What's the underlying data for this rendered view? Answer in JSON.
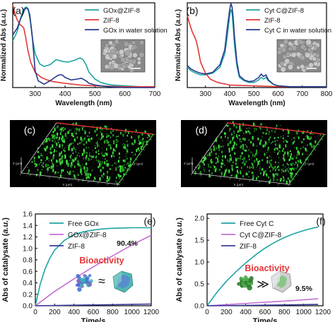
{
  "figure": {
    "background": "#ffffff"
  },
  "chart_data": [
    {
      "panel": "a",
      "type": "line",
      "xlabel": "Wavelength (nm)",
      "ylabel": "Normalized Abs (a.u.)",
      "xlim": [
        225,
        700
      ],
      "ylim": [
        0,
        1.0
      ],
      "xticks": [
        300,
        400,
        500,
        600,
        700
      ],
      "yticks": [],
      "legend": "top-right",
      "inset": "sem-image",
      "series": [
        {
          "name": "GOx@ZIF-8",
          "color": "#1fa3a3",
          "x": [
            225,
            240,
            250,
            258,
            265,
            272,
            278,
            284,
            290,
            300,
            315,
            330,
            350,
            370,
            390,
            410,
            430,
            450,
            460,
            470,
            480,
            500,
            520,
            540,
            560,
            600,
            650,
            700
          ],
          "y": [
            0.55,
            0.66,
            0.8,
            0.9,
            0.94,
            0.95,
            0.9,
            0.78,
            0.6,
            0.4,
            0.28,
            0.25,
            0.27,
            0.33,
            0.31,
            0.3,
            0.32,
            0.35,
            0.33,
            0.27,
            0.18,
            0.1,
            0.06,
            0.04,
            0.03,
            0.02,
            0.01,
            0.01
          ]
        },
        {
          "name": "ZIF-8",
          "color": "#e23636",
          "x": [
            225,
            232,
            240,
            250,
            258,
            262,
            268,
            275,
            285,
            300,
            320,
            340,
            360,
            380,
            400,
            450,
            500,
            600,
            700
          ],
          "y": [
            0.98,
            0.88,
            0.8,
            0.74,
            0.72,
            0.7,
            0.6,
            0.45,
            0.3,
            0.18,
            0.12,
            0.09,
            0.07,
            0.06,
            0.05,
            0.03,
            0.02,
            0.01,
            0.01
          ]
        },
        {
          "name": "GOx in water solution",
          "color": "#253a8c",
          "x": [
            225,
            240,
            250,
            260,
            265,
            270,
            276,
            282,
            290,
            300,
            310,
            330,
            350,
            370,
            380,
            390,
            400,
            420,
            440,
            455,
            470,
            480,
            500,
            520,
            550,
            600,
            700
          ],
          "y": [
            0.62,
            0.7,
            0.8,
            0.88,
            0.92,
            0.94,
            0.93,
            0.86,
            0.62,
            0.2,
            0.08,
            0.04,
            0.08,
            0.13,
            0.15,
            0.15,
            0.12,
            0.09,
            0.1,
            0.11,
            0.08,
            0.05,
            0.03,
            0.02,
            0.01,
            0.0,
            0.0
          ]
        }
      ]
    },
    {
      "panel": "b",
      "type": "line",
      "xlabel": "Wavelength (nm)",
      "ylabel": "Normalized Abs (a.u.)",
      "xlim": [
        225,
        800
      ],
      "ylim": [
        0,
        1.0
      ],
      "xticks": [
        300,
        400,
        500,
        600,
        700,
        800
      ],
      "yticks": [],
      "legend": "top-right",
      "inset": "sem-image",
      "series": [
        {
          "name": "Cyt C@ZIF-8",
          "color": "#1fa3a3",
          "x": [
            225,
            240,
            260,
            280,
            300,
            330,
            360,
            380,
            390,
            400,
            405,
            410,
            415,
            420,
            430,
            440,
            460,
            480,
            500,
            520,
            530,
            540,
            550,
            560,
            580,
            600,
            650,
            700,
            800
          ],
          "y": [
            0.24,
            0.2,
            0.17,
            0.15,
            0.15,
            0.17,
            0.24,
            0.4,
            0.6,
            0.85,
            0.92,
            0.88,
            0.7,
            0.5,
            0.25,
            0.12,
            0.08,
            0.06,
            0.06,
            0.09,
            0.12,
            0.1,
            0.12,
            0.08,
            0.04,
            0.02,
            0.01,
            0.01,
            0.01
          ]
        },
        {
          "name": "ZIF-8",
          "color": "#e23636",
          "x": [
            225,
            235,
            245,
            255,
            262,
            270,
            280,
            300,
            320,
            350,
            400,
            500,
            600,
            800
          ],
          "y": [
            0.85,
            0.75,
            0.66,
            0.6,
            0.55,
            0.45,
            0.3,
            0.17,
            0.1,
            0.06,
            0.03,
            0.02,
            0.01,
            0.01
          ]
        },
        {
          "name": "Cyt C in water solution",
          "color": "#253a8c",
          "x": [
            225,
            240,
            260,
            280,
            300,
            330,
            360,
            380,
            390,
            400,
            405,
            410,
            415,
            420,
            430,
            440,
            460,
            480,
            500,
            520,
            530,
            540,
            550,
            560,
            580,
            600,
            650,
            700,
            800
          ],
          "y": [
            0.26,
            0.22,
            0.19,
            0.17,
            0.16,
            0.18,
            0.27,
            0.45,
            0.7,
            0.92,
            0.99,
            0.95,
            0.8,
            0.6,
            0.3,
            0.14,
            0.09,
            0.07,
            0.08,
            0.12,
            0.16,
            0.13,
            0.15,
            0.09,
            0.04,
            0.02,
            0.01,
            0.01,
            0.01
          ]
        }
      ]
    },
    {
      "panel": "c",
      "type": "scatter",
      "xlabel": "X (µm)",
      "ylabel": "Y (µm)",
      "zlabel": "Z (µm)",
      "view": "3d-confocal"
    },
    {
      "panel": "d",
      "type": "scatter",
      "xlabel": "X (µm)",
      "ylabel": "Y (µm)",
      "zlabel": "Z (µm)",
      "view": "3d-confocal"
    },
    {
      "panel": "e",
      "type": "line",
      "xlabel": "Time/s",
      "ylabel": "Abs of catalysate (a.u.)",
      "xlim": [
        0,
        1200
      ],
      "ylim": [
        0,
        1.6
      ],
      "xticks": [
        0,
        200,
        400,
        600,
        800,
        1000,
        1200
      ],
      "yticks": [
        0.0,
        0.2,
        0.4,
        0.6,
        0.8,
        1.0,
        1.2,
        1.4,
        1.6
      ],
      "legend": "top-left",
      "annotations": [
        "90.4%",
        "Bioactivity",
        "≈"
      ],
      "series": [
        {
          "name": "Free GOx",
          "color": "#1fa3a3",
          "x": [
            0,
            50,
            100,
            150,
            200,
            300,
            400,
            500,
            600,
            700,
            800,
            900,
            1000,
            1100,
            1200
          ],
          "y": [
            0.0,
            0.37,
            0.64,
            0.83,
            0.97,
            1.14,
            1.24,
            1.29,
            1.32,
            1.34,
            1.35,
            1.355,
            1.36,
            1.36,
            1.36
          ]
        },
        {
          "name": "GOx@ZIF-8",
          "color": "#c46fd6",
          "x": [
            0,
            200,
            400,
            600,
            800,
            1000,
            1200
          ],
          "y": [
            0.0,
            0.25,
            0.47,
            0.68,
            0.87,
            1.06,
            1.23
          ]
        },
        {
          "name": "ZIF-8",
          "color": "#3d3d9c",
          "x": [
            0,
            400,
            800,
            1200
          ],
          "y": [
            0.0,
            0.01,
            0.02,
            0.03
          ]
        }
      ]
    },
    {
      "panel": "f",
      "type": "line",
      "xlabel": "Time/s",
      "ylabel": "Abs of catalysate (a.u.)",
      "xlim": [
        0,
        1200
      ],
      "ylim": [
        0,
        2.1
      ],
      "xticks": [
        0,
        200,
        400,
        600,
        800,
        1000,
        1200
      ],
      "yticks": [
        0.0,
        0.5,
        1.0,
        1.5,
        2.0
      ],
      "legend": "top-left",
      "annotations": [
        "9.5%",
        "Bioactivity",
        "≫"
      ],
      "series": [
        {
          "name": "Free Cyt C",
          "color": "#1fa3a3",
          "x": [
            0,
            100,
            200,
            300,
            400,
            500,
            600,
            700,
            800,
            900,
            1000,
            1100,
            1150
          ],
          "y": [
            0.0,
            0.3,
            0.56,
            0.78,
            0.98,
            1.16,
            1.32,
            1.45,
            1.56,
            1.65,
            1.72,
            1.78,
            1.8
          ]
        },
        {
          "name": "Cyt C@ZIF-8",
          "color": "#c46fd6",
          "x": [
            0,
            300,
            600,
            900,
            1150
          ],
          "y": [
            0.0,
            0.04,
            0.08,
            0.12,
            0.16
          ]
        },
        {
          "name": "ZIF-8",
          "color": "#3d3d9c",
          "x": [
            0,
            400,
            800,
            1150
          ],
          "y": [
            0.0,
            0.01,
            0.02,
            0.03
          ]
        }
      ]
    }
  ]
}
